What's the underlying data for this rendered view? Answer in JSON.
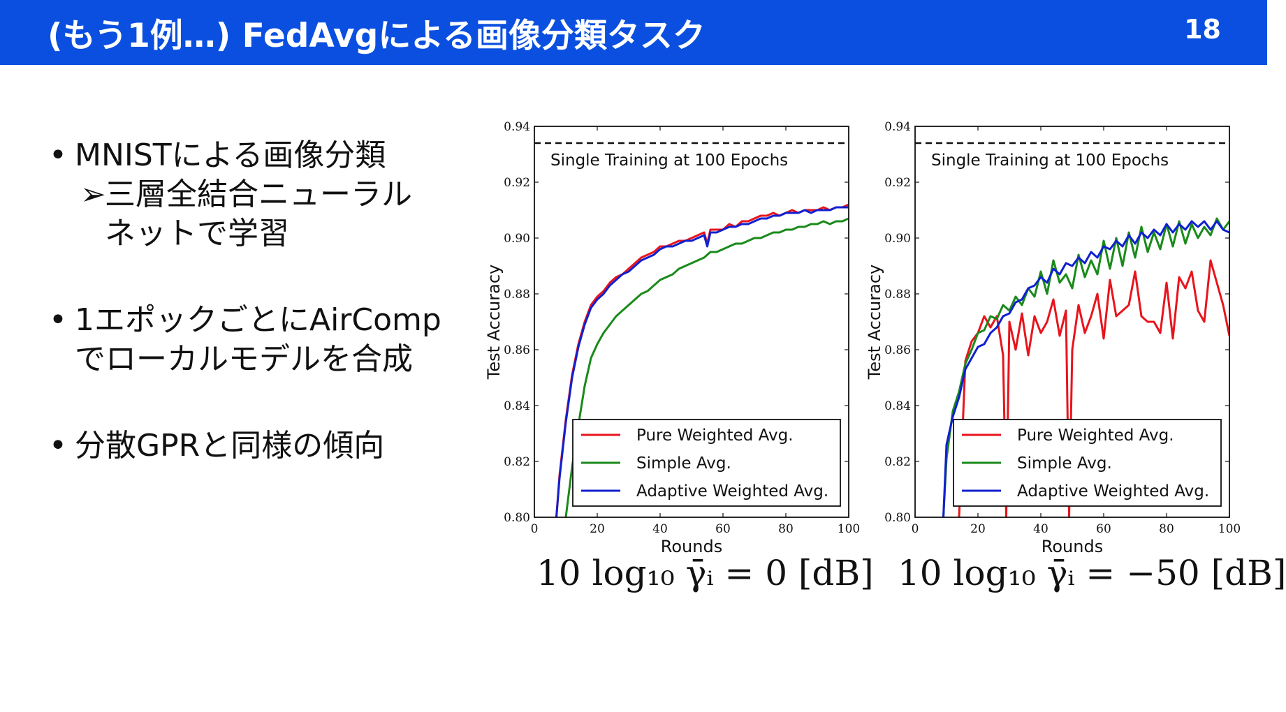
{
  "header": {
    "title": "(もう1例…) FedAvgによる画像分類タスク",
    "page_number": "18"
  },
  "bullets": [
    {
      "dot": "•",
      "text": "MNISTによる画像分類",
      "sub": [
        "三層全結合ニューラル",
        "ネットで学習"
      ]
    },
    {
      "dot": "•",
      "lines": [
        "1エポックごとにAirComp",
        "でローカルモデルを合成"
      ]
    },
    {
      "dot": "•",
      "text": "分散GPRと同様の傾向"
    }
  ],
  "sub_marker": "➢",
  "formulas": [
    "10 log₁₀ γ̄ᵢ = 0 [dB]",
    "10 log₁₀ γ̄ᵢ = −50 [dB]"
  ],
  "colors": {
    "header": "#0a4fe0",
    "pure": "#e8141c",
    "simple": "#1a8a1a",
    "adaptive": "#1020d0"
  },
  "chart_data": [
    {
      "type": "line",
      "xlabel": "Rounds",
      "ylabel": "Test Accuracy",
      "xlim": [
        0,
        100
      ],
      "ylim": [
        0.8,
        0.94
      ],
      "xticks": [
        "0",
        "20",
        "40",
        "60",
        "80",
        "100"
      ],
      "yticks": [
        "0.80",
        "0.82",
        "0.84",
        "0.86",
        "0.88",
        "0.90",
        "0.92",
        "0.94"
      ],
      "reference_line": {
        "y": 0.934,
        "label": "Single Training at 100 Epochs"
      },
      "legend_position": "lower-right",
      "series": [
        {
          "name": "Pure Weighted Avg.",
          "color": "#e8141c",
          "x": [
            7,
            8,
            10,
            12,
            14,
            16,
            18,
            20,
            22,
            24,
            26,
            28,
            30,
            32,
            34,
            36,
            38,
            40,
            42,
            44,
            46,
            48,
            50,
            52,
            54,
            55,
            56,
            58,
            60,
            62,
            64,
            66,
            68,
            70,
            72,
            74,
            76,
            78,
            80,
            82,
            84,
            86,
            88,
            90,
            92,
            94,
            96,
            98,
            100
          ],
          "y": [
            0.8,
            0.815,
            0.835,
            0.851,
            0.862,
            0.87,
            0.876,
            0.879,
            0.881,
            0.884,
            0.886,
            0.887,
            0.889,
            0.891,
            0.893,
            0.894,
            0.895,
            0.897,
            0.897,
            0.898,
            0.899,
            0.899,
            0.9,
            0.901,
            0.902,
            0.898,
            0.903,
            0.903,
            0.903,
            0.905,
            0.904,
            0.906,
            0.906,
            0.907,
            0.908,
            0.908,
            0.909,
            0.908,
            0.909,
            0.91,
            0.909,
            0.91,
            0.91,
            0.91,
            0.911,
            0.91,
            0.911,
            0.911,
            0.912
          ]
        },
        {
          "name": "Simple Avg.",
          "color": "#1a8a1a",
          "x": [
            10,
            12,
            14,
            16,
            18,
            20,
            22,
            24,
            26,
            28,
            30,
            32,
            34,
            36,
            38,
            40,
            42,
            44,
            46,
            48,
            50,
            52,
            54,
            56,
            58,
            60,
            62,
            64,
            66,
            68,
            70,
            72,
            74,
            76,
            78,
            80,
            82,
            84,
            86,
            88,
            90,
            92,
            94,
            96,
            98,
            100
          ],
          "y": [
            0.8,
            0.818,
            0.833,
            0.847,
            0.857,
            0.862,
            0.866,
            0.869,
            0.872,
            0.874,
            0.876,
            0.878,
            0.88,
            0.881,
            0.883,
            0.885,
            0.886,
            0.887,
            0.889,
            0.89,
            0.891,
            0.892,
            0.893,
            0.895,
            0.895,
            0.896,
            0.897,
            0.898,
            0.898,
            0.899,
            0.9,
            0.9,
            0.901,
            0.902,
            0.902,
            0.903,
            0.903,
            0.904,
            0.904,
            0.905,
            0.905,
            0.906,
            0.905,
            0.906,
            0.906,
            0.907
          ]
        },
        {
          "name": "Adaptive Weighted Avg.",
          "color": "#1020d0",
          "x": [
            7,
            8,
            10,
            12,
            14,
            16,
            18,
            20,
            22,
            24,
            26,
            28,
            30,
            32,
            34,
            36,
            38,
            40,
            42,
            44,
            46,
            48,
            50,
            52,
            54,
            55,
            56,
            58,
            60,
            62,
            64,
            66,
            68,
            70,
            72,
            74,
            76,
            78,
            80,
            82,
            84,
            86,
            88,
            90,
            92,
            94,
            96,
            98,
            100
          ],
          "y": [
            0.8,
            0.814,
            0.834,
            0.85,
            0.861,
            0.869,
            0.875,
            0.878,
            0.88,
            0.883,
            0.885,
            0.887,
            0.888,
            0.89,
            0.892,
            0.893,
            0.894,
            0.896,
            0.897,
            0.897,
            0.898,
            0.899,
            0.899,
            0.9,
            0.901,
            0.897,
            0.902,
            0.902,
            0.903,
            0.904,
            0.904,
            0.905,
            0.905,
            0.906,
            0.907,
            0.907,
            0.908,
            0.908,
            0.909,
            0.909,
            0.909,
            0.91,
            0.909,
            0.91,
            0.91,
            0.91,
            0.911,
            0.911,
            0.911
          ]
        }
      ]
    },
    {
      "type": "line",
      "xlabel": "Rounds",
      "ylabel": "Test Accuracy",
      "xlim": [
        0,
        100
      ],
      "ylim": [
        0.8,
        0.94
      ],
      "xticks": [
        "0",
        "20",
        "40",
        "60",
        "80",
        "100"
      ],
      "yticks": [
        "0.80",
        "0.82",
        "0.84",
        "0.86",
        "0.88",
        "0.90",
        "0.92",
        "0.94"
      ],
      "reference_line": {
        "y": 0.934,
        "label": "Single Training at 100 Epochs"
      },
      "legend_position": "lower-right",
      "series": [
        {
          "name": "Pure Weighted Avg.",
          "color": "#e8141c",
          "x": [
            14,
            16,
            18,
            20,
            22,
            24,
            26,
            28,
            29,
            30,
            32,
            34,
            36,
            38,
            40,
            42,
            44,
            46,
            48,
            49,
            50,
            52,
            54,
            56,
            58,
            60,
            62,
            64,
            66,
            68,
            70,
            72,
            74,
            76,
            78,
            80,
            82,
            84,
            86,
            88,
            90,
            92,
            94,
            96,
            98,
            100
          ],
          "y": [
            0.8,
            0.856,
            0.863,
            0.866,
            0.872,
            0.868,
            0.872,
            0.858,
            0.8,
            0.87,
            0.86,
            0.873,
            0.858,
            0.872,
            0.866,
            0.87,
            0.878,
            0.865,
            0.874,
            0.8,
            0.86,
            0.876,
            0.866,
            0.872,
            0.88,
            0.864,
            0.885,
            0.872,
            0.874,
            0.876,
            0.888,
            0.872,
            0.87,
            0.87,
            0.866,
            0.884,
            0.864,
            0.886,
            0.882,
            0.888,
            0.874,
            0.87,
            0.892,
            0.884,
            0.876,
            0.865
          ]
        },
        {
          "name": "Simple Avg.",
          "color": "#1a8a1a",
          "x": [
            9,
            10,
            12,
            14,
            16,
            18,
            20,
            22,
            24,
            26,
            28,
            30,
            32,
            34,
            36,
            38,
            40,
            42,
            44,
            46,
            48,
            50,
            52,
            54,
            56,
            58,
            60,
            62,
            64,
            66,
            68,
            70,
            72,
            74,
            76,
            78,
            80,
            82,
            84,
            86,
            88,
            90,
            92,
            94,
            96,
            98,
            100
          ],
          "y": [
            0.8,
            0.821,
            0.838,
            0.845,
            0.855,
            0.86,
            0.866,
            0.867,
            0.872,
            0.871,
            0.876,
            0.874,
            0.879,
            0.876,
            0.882,
            0.879,
            0.888,
            0.88,
            0.892,
            0.884,
            0.887,
            0.882,
            0.894,
            0.886,
            0.892,
            0.887,
            0.899,
            0.889,
            0.9,
            0.89,
            0.902,
            0.893,
            0.904,
            0.895,
            0.902,
            0.896,
            0.905,
            0.897,
            0.906,
            0.898,
            0.905,
            0.9,
            0.904,
            0.901,
            0.907,
            0.903,
            0.906
          ]
        },
        {
          "name": "Adaptive Weighted Avg.",
          "color": "#1020d0",
          "x": [
            9,
            10,
            12,
            14,
            16,
            18,
            20,
            22,
            24,
            26,
            28,
            30,
            32,
            34,
            36,
            38,
            40,
            42,
            44,
            46,
            48,
            50,
            52,
            54,
            56,
            58,
            60,
            62,
            64,
            66,
            68,
            70,
            72,
            74,
            76,
            78,
            80,
            82,
            84,
            86,
            88,
            90,
            92,
            94,
            96,
            98,
            100
          ],
          "y": [
            0.8,
            0.826,
            0.836,
            0.843,
            0.853,
            0.857,
            0.861,
            0.862,
            0.866,
            0.868,
            0.872,
            0.873,
            0.877,
            0.878,
            0.882,
            0.883,
            0.886,
            0.884,
            0.889,
            0.887,
            0.891,
            0.89,
            0.893,
            0.891,
            0.895,
            0.893,
            0.897,
            0.896,
            0.899,
            0.897,
            0.901,
            0.898,
            0.902,
            0.9,
            0.903,
            0.901,
            0.905,
            0.902,
            0.905,
            0.903,
            0.906,
            0.904,
            0.906,
            0.903,
            0.906,
            0.903,
            0.902
          ]
        }
      ]
    }
  ]
}
